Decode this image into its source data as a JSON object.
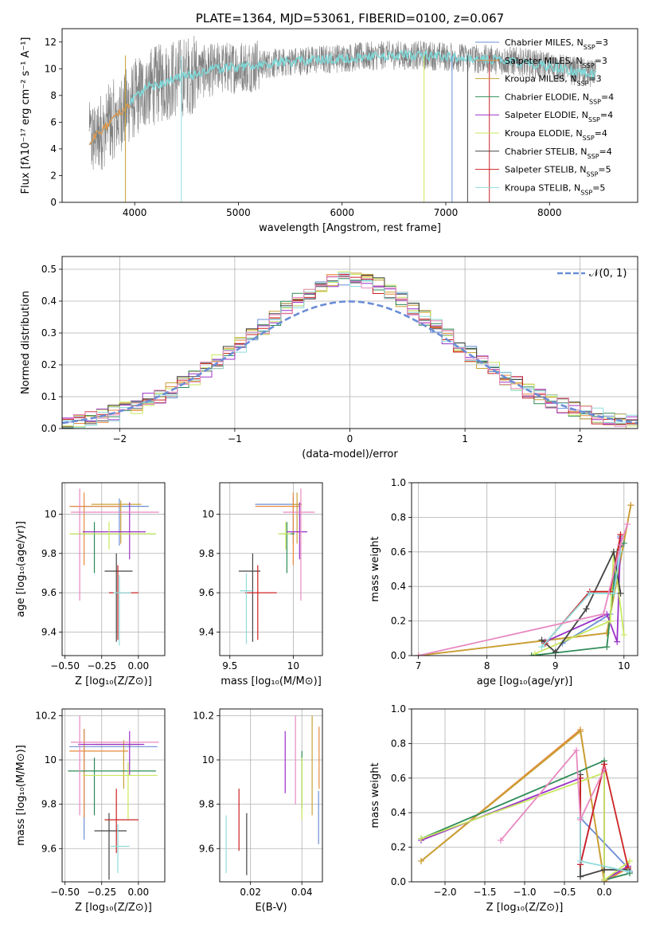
{
  "colors": [
    "#6b8ed6",
    "#e68a3e",
    "#c8a135",
    "#2e8b57",
    "#9b30c8",
    "#c8e860",
    "#444444",
    "#cc2222",
    "#8fdcdc",
    "#e888c0"
  ],
  "chart_data": [
    {
      "id": "spectrum",
      "type": "line",
      "title": "PLATE=1364, MJD=53061, FIBERID=0100, z=0.067",
      "xlabel": "wavelength [Angstrom, rest frame]",
      "ylabel": "Flux [fλ10⁻¹⁷ erg cm⁻² s⁻¹ A⁻¹]",
      "xlim": [
        3300,
        8850
      ],
      "ylim": [
        0,
        13
      ],
      "xticks": [
        4000,
        5000,
        6000,
        7000,
        8000
      ],
      "yticks": [
        0,
        2,
        4,
        6,
        8,
        10,
        12
      ],
      "data_color": "#808080",
      "model_color": "#7fd8d8",
      "data_range": [
        3560,
        8450
      ],
      "continuum": [
        [
          3560,
          4.5
        ],
        [
          3700,
          5.5
        ],
        [
          3900,
          7
        ],
        [
          4100,
          8.5
        ],
        [
          4400,
          9.3
        ],
        [
          4800,
          10
        ],
        [
          5200,
          10.3
        ],
        [
          5600,
          10.6
        ],
        [
          6000,
          10.8
        ],
        [
          6400,
          11
        ],
        [
          6800,
          11
        ],
        [
          7200,
          10.8
        ],
        [
          7600,
          10.6
        ],
        [
          8000,
          10.2
        ],
        [
          8450,
          9.5
        ]
      ],
      "legend": [
        {
          "label": "Chabrier MILES, N",
          "sub": "SSP",
          "tail": "=3"
        },
        {
          "label": "Salpeter MILES, N",
          "sub": "SSP",
          "tail": "=3"
        },
        {
          "label": "Kroupa MILES, N",
          "sub": "SSP",
          "tail": "=3"
        },
        {
          "label": "Chabrier ELODIE, N",
          "sub": "SSP",
          "tail": "=4"
        },
        {
          "label": "Salpeter ELODIE, N",
          "sub": "SSP",
          "tail": "=4"
        },
        {
          "label": "Kroupa ELODIE, N",
          "sub": "SSP",
          "tail": "=4"
        },
        {
          "label": "Chabrier STELIB, N",
          "sub": "SSP",
          "tail": "=4"
        },
        {
          "label": "Salpeter STELIB, N",
          "sub": "SSP",
          "tail": "=5"
        },
        {
          "label": "Kroupa STELIB, N",
          "sub": "SSP",
          "tail": "=5"
        }
      ]
    },
    {
      "id": "residuals",
      "type": "line",
      "xlabel": "(data-model)/error",
      "ylabel": "Normed distribution",
      "xlim": [
        -2.5,
        2.5
      ],
      "ylim": [
        0,
        0.54
      ],
      "xticks": [
        -2,
        -1,
        0,
        1,
        2
      ],
      "yticks": [
        0.0,
        0.1,
        0.2,
        0.3,
        0.4,
        0.5
      ],
      "legend_label": "𝒩(0, 1)",
      "bin_width": 0.1
    },
    {
      "id": "age-vs-Z",
      "type": "scatter",
      "xlabel": "Z [log₁₀(Z/Z⊙)]",
      "ylabel": "age  [log₁₀(age/yr)]",
      "xlim": [
        -0.52,
        0.18
      ],
      "ylim": [
        9.28,
        10.16
      ],
      "xticks": [
        -0.5,
        -0.25,
        0.0
      ],
      "xtick_labels": [
        "−0.50",
        "−0.25",
        "0.00"
      ],
      "yticks": [
        9.4,
        9.6,
        9.8,
        10.0
      ],
      "points": [
        {
          "x": -0.13,
          "y": 10.04,
          "xerr": [
            0.32,
            0.2
          ],
          "yerr": [
            0.2,
            0.04
          ]
        },
        {
          "x": -0.37,
          "y": 10.04,
          "xerr": [
            0.1,
            0.26
          ],
          "yerr": [
            0.3,
            0.07
          ]
        },
        {
          "x": -0.12,
          "y": 10.05,
          "xerr": [
            0.2,
            0.14
          ],
          "yerr": [
            0.2,
            0.02
          ]
        },
        {
          "x": -0.3,
          "y": 9.9,
          "xerr": [
            0.16,
            0.42
          ],
          "yerr": [
            0.2,
            0.06
          ]
        },
        {
          "x": -0.06,
          "y": 9.91,
          "xerr": [
            0.32,
            0.11
          ],
          "yerr": [
            0.14,
            0.15
          ]
        },
        {
          "x": -0.2,
          "y": 9.9,
          "xerr": [
            0.27,
            0.32
          ],
          "yerr": [
            0.08,
            0.06
          ]
        },
        {
          "x": -0.15,
          "y": 9.71,
          "xerr": [
            0.08,
            0.11
          ],
          "yerr": [
            0.36,
            0.09
          ]
        },
        {
          "x": -0.14,
          "y": 9.6,
          "xerr": [
            0.06,
            0.14
          ],
          "yerr": [
            0.24,
            0.14
          ]
        },
        {
          "x": -0.13,
          "y": 9.6,
          "xerr": [
            0.04,
            0.08
          ],
          "yerr": [
            0.27,
            0.09
          ]
        },
        {
          "x": -0.4,
          "y": 10.01,
          "xerr": [
            0.06,
            0.54
          ],
          "yerr": [
            0.45,
            0.12
          ]
        }
      ]
    },
    {
      "id": "age-vs-mass",
      "type": "scatter",
      "xlabel": "mass [log₁₀(M/M⊙)]",
      "xlim": [
        9.42,
        10.23
      ],
      "ylim": [
        9.28,
        10.16
      ],
      "xticks": [
        9.5,
        10.0
      ],
      "yticks": [
        9.4,
        9.6,
        9.8,
        10.0
      ],
      "points": [
        {
          "x": 10.0,
          "y": 10.05,
          "xerr": [
            0.3,
            0.05
          ],
          "yerr": [
            0.2,
            0.04
          ]
        },
        {
          "x": 10.0,
          "y": 10.04,
          "xerr": [
            0.3,
            0.05
          ],
          "yerr": [
            0.3,
            0.07
          ]
        },
        {
          "x": 10.03,
          "y": 10.05,
          "xerr": [
            0.04,
            0.04
          ],
          "yerr": [
            0.2,
            0.06
          ]
        },
        {
          "x": 9.95,
          "y": 9.9,
          "xerr": [
            0.05,
            0.06
          ],
          "yerr": [
            0.2,
            0.06
          ]
        },
        {
          "x": 10.05,
          "y": 9.91,
          "xerr": [
            0.1,
            0.06
          ],
          "yerr": [
            0.14,
            0.15
          ]
        },
        {
          "x": 9.94,
          "y": 9.9,
          "xerr": [
            0.06,
            0.04
          ],
          "yerr": [
            0.08,
            0.06
          ]
        },
        {
          "x": 9.68,
          "y": 9.71,
          "xerr": [
            0.11,
            0.06
          ],
          "yerr": [
            0.36,
            0.09
          ]
        },
        {
          "x": 9.72,
          "y": 9.6,
          "xerr": [
            0.1,
            0.15
          ],
          "yerr": [
            0.24,
            0.14
          ]
        },
        {
          "x": 9.63,
          "y": 9.61,
          "xerr": [
            0.05,
            0.05
          ],
          "yerr": [
            0.27,
            0.09
          ]
        },
        {
          "x": 10.06,
          "y": 10.01,
          "xerr": [
            0.14,
            0.11
          ],
          "yerr": [
            0.45,
            0.12
          ]
        }
      ]
    },
    {
      "id": "massweight-vs-age",
      "type": "line",
      "xlabel": "age  [log₁₀(age/yr)]",
      "ylabel": "mass weight",
      "xlim": [
        6.9,
        10.2
      ],
      "ylim": [
        0,
        1.0
      ],
      "xticks": [
        7,
        8,
        9,
        10
      ],
      "yticks": [
        0.0,
        0.2,
        0.4,
        0.6,
        0.8,
        1.0
      ],
      "series": [
        {
          "points": [
            [
              9.1,
              0.07
            ],
            [
              9.8,
              0.24
            ],
            [
              9.95,
              0.69
            ]
          ]
        },
        {
          "points": [
            [
              7.0,
              0.0
            ],
            [
              9.75,
              0.13
            ],
            [
              10.1,
              0.87
            ]
          ]
        },
        {
          "points": [
            [
              7.0,
              0.0
            ],
            [
              9.75,
              0.13
            ],
            [
              10.1,
              0.87
            ]
          ]
        },
        {
          "points": [
            [
              8.65,
              0.0
            ],
            [
              9.75,
              0.05
            ],
            [
              9.9,
              0.6
            ],
            [
              10.0,
              0.65
            ]
          ]
        },
        {
          "points": [
            [
              8.85,
              0.08
            ],
            [
              9.75,
              0.24
            ],
            [
              9.9,
              0.08
            ],
            [
              9.95,
              0.68
            ]
          ]
        },
        {
          "points": [
            [
              8.7,
              0.01
            ],
            [
              9.8,
              0.2
            ],
            [
              9.85,
              0.6
            ],
            [
              10.0,
              0.12
            ]
          ]
        },
        {
          "points": [
            [
              8.8,
              0.09
            ],
            [
              9.0,
              0.02
            ],
            [
              9.45,
              0.27
            ],
            [
              9.85,
              0.6
            ],
            [
              9.95,
              0.36
            ]
          ]
        },
        {
          "points": [
            [
              8.85,
              0.07
            ],
            [
              9.5,
              0.37
            ],
            [
              9.8,
              0.37
            ],
            [
              9.95,
              0.7
            ]
          ]
        },
        {
          "points": [
            [
              8.8,
              0.05
            ],
            [
              9.5,
              0.36
            ],
            [
              9.85,
              0.36
            ],
            [
              9.95,
              0.6
            ]
          ]
        },
        {
          "points": [
            [
              7.0,
              0.0
            ],
            [
              9.7,
              0.24
            ],
            [
              9.95,
              0.64
            ],
            [
              10.05,
              0.76
            ]
          ]
        }
      ]
    },
    {
      "id": "mass-vs-Z",
      "type": "scatter",
      "xlabel": "Z [log₁₀(Z/Z⊙)]",
      "ylabel": "mass [log₁₀(M/M⊙)]",
      "xlim": [
        -0.52,
        0.18
      ],
      "ylim": [
        9.45,
        10.23
      ],
      "xticks": [
        -0.5,
        -0.25,
        0.0
      ],
      "xtick_labels": [
        "−0.50",
        "−0.25",
        "0.00"
      ],
      "yticks": [
        9.6,
        9.8,
        10.0,
        10.2
      ],
      "points": [
        {
          "x": -0.37,
          "y": 10.06,
          "xerr": [
            0.1,
            0.5
          ],
          "yerr": [
            0.42,
            0.08
          ]
        },
        {
          "x": -0.37,
          "y": 10.04,
          "xerr": [
            0.1,
            0.3
          ],
          "yerr": [
            0.3,
            0.1
          ]
        },
        {
          "x": -0.1,
          "y": 10.07,
          "xerr": [
            0.2,
            0.1
          ],
          "yerr": [
            0.2,
            0.02
          ]
        },
        {
          "x": -0.3,
          "y": 9.95,
          "xerr": [
            0.18,
            0.42
          ],
          "yerr": [
            0.2,
            0.06
          ]
        },
        {
          "x": -0.06,
          "y": 10.07,
          "xerr": [
            0.35,
            0.1
          ],
          "yerr": [
            0.14,
            0.06
          ]
        },
        {
          "x": -0.07,
          "y": 9.93,
          "xerr": [
            0.31,
            0.2
          ],
          "yerr": [
            0.2,
            0.06
          ]
        },
        {
          "x": -0.2,
          "y": 9.68,
          "xerr": [
            0.1,
            0.12
          ],
          "yerr": [
            0.22,
            0.08
          ]
        },
        {
          "x": -0.15,
          "y": 9.73,
          "xerr": [
            0.08,
            0.15
          ],
          "yerr": [
            0.15,
            0.14
          ]
        },
        {
          "x": -0.14,
          "y": 9.61,
          "xerr": [
            0.05,
            0.08
          ],
          "yerr": [
            0.12,
            0.1
          ]
        },
        {
          "x": -0.4,
          "y": 10.08,
          "xerr": [
            0.06,
            0.54
          ],
          "yerr": [
            0.33,
            0.12
          ]
        }
      ]
    },
    {
      "id": "mass-vs-ebv",
      "type": "scatter",
      "xlabel": "E(B-V)",
      "xlim": [
        0.008,
        0.048
      ],
      "ylim": [
        9.45,
        10.23
      ],
      "xticks": [
        0.02,
        0.04
      ],
      "xtick_labels": [
        "0.02",
        "0.04"
      ],
      "yticks": [
        9.6,
        9.8,
        10.0,
        10.2
      ],
      "points": [
        {
          "x": 0.0465,
          "y": 9.82,
          "yerr": [
            0.2,
            0.04
          ]
        },
        {
          "x": 0.0467,
          "y": 10.02,
          "yerr": [
            0.15,
            0.13
          ]
        },
        {
          "x": 0.044,
          "y": 10.0,
          "yerr": [
            0.25,
            0.2
          ]
        },
        {
          "x": 0.04,
          "y": 9.98,
          "yerr": [
            0.2,
            0.06
          ]
        },
        {
          "x": 0.0335,
          "y": 9.99,
          "yerr": [
            0.14,
            0.14
          ]
        },
        {
          "x": 0.04,
          "y": 9.85,
          "yerr": [
            0.12,
            0.16
          ]
        },
        {
          "x": 0.0185,
          "y": 9.62,
          "yerr": [
            0.14,
            0.14
          ]
        },
        {
          "x": 0.0155,
          "y": 9.73,
          "yerr": [
            0.14,
            0.14
          ]
        },
        {
          "x": 0.0105,
          "y": 9.62,
          "yerr": [
            0.13,
            0.13
          ]
        },
        {
          "x": 0.0375,
          "y": 9.95,
          "yerr": [
            0.15,
            0.25
          ]
        }
      ]
    },
    {
      "id": "massweight-vs-Z",
      "type": "line",
      "xlabel": "Z [log₁₀(Z/Z⊙)]",
      "ylabel": "mass weight",
      "xlim": [
        -2.42,
        0.42
      ],
      "ylim": [
        0,
        1.0
      ],
      "xticks": [
        -2.0,
        -1.5,
        -1.0,
        -0.5,
        0.0
      ],
      "xtick_labels": [
        "−2.0",
        "−1.5",
        "−1.0",
        "−0.5",
        "0.0"
      ],
      "yticks": [
        0.0,
        0.2,
        0.4,
        0.6,
        0.8,
        1.0
      ],
      "series": [
        {
          "points": [
            [
              -0.3,
              0.37
            ],
            [
              0.3,
              0.08
            ],
            [
              0.32,
              0.06
            ]
          ]
        },
        {
          "points": [
            [
              -2.3,
              0.12
            ],
            [
              -0.3,
              0.88
            ],
            [
              0.0,
              0.0
            ],
            [
              0.3,
              0.08
            ]
          ]
        },
        {
          "points": [
            [
              -2.3,
              0.12
            ],
            [
              -0.3,
              0.87
            ],
            [
              0.0,
              0.01
            ],
            [
              0.3,
              0.09
            ]
          ]
        },
        {
          "points": [
            [
              -2.3,
              0.25
            ],
            [
              0.0,
              0.7
            ],
            [
              0.0,
              0.01
            ],
            [
              0.32,
              0.05
            ]
          ]
        },
        {
          "points": [
            [
              -2.3,
              0.24
            ],
            [
              -0.3,
              0.6
            ],
            [
              -0.3,
              0.1
            ],
            [
              0.0,
              0.68
            ],
            [
              0.0,
              0.01
            ],
            [
              0.3,
              0.09
            ]
          ]
        },
        {
          "points": [
            [
              -2.3,
              0.25
            ],
            [
              0.0,
              0.63
            ],
            [
              0.0,
              0.01
            ],
            [
              0.32,
              0.12
            ]
          ]
        },
        {
          "points": [
            [
              -0.3,
              0.62
            ],
            [
              -0.3,
              0.03
            ],
            [
              0.0,
              0.07
            ],
            [
              0.3,
              0.07
            ]
          ]
        },
        {
          "points": [
            [
              -0.3,
              0.6
            ],
            [
              -0.3,
              0.1
            ],
            [
              0.0,
              0.68
            ],
            [
              0.3,
              0.08
            ]
          ]
        },
        {
          "points": [
            [
              -0.3,
              0.37
            ],
            [
              -0.3,
              0.12
            ],
            [
              0.3,
              0.06
            ]
          ]
        },
        {
          "points": [
            [
              -1.3,
              0.24
            ],
            [
              -0.35,
              0.76
            ],
            [
              -0.3,
              0.36
            ],
            [
              0.0,
              0.65
            ]
          ]
        }
      ]
    }
  ]
}
